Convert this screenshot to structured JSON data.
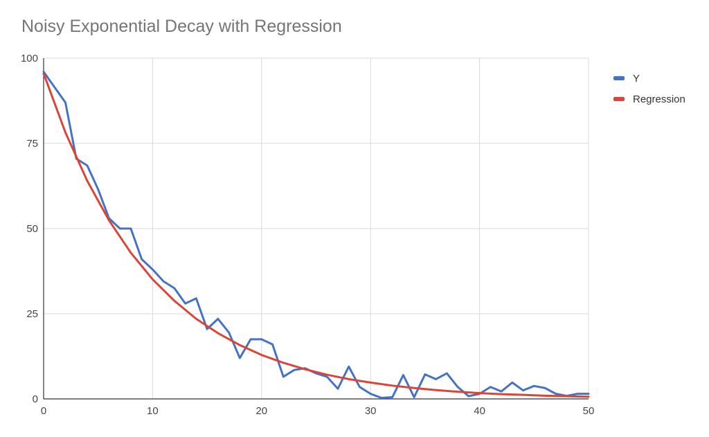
{
  "chart_data": {
    "type": "line",
    "title": "Noisy Exponential Decay with Regression",
    "xlabel": "",
    "ylabel": "",
    "xlim": [
      0,
      50
    ],
    "ylim": [
      0,
      100
    ],
    "x_ticks": [
      0,
      10,
      20,
      30,
      40,
      50
    ],
    "y_ticks": [
      0,
      25,
      50,
      75,
      100
    ],
    "grid": true,
    "legend_position": "right",
    "series": [
      {
        "name": "Y",
        "color": "#4472C4",
        "x": [
          0,
          1,
          2,
          3,
          4,
          5,
          6,
          7,
          8,
          9,
          10,
          11,
          12,
          13,
          14,
          15,
          16,
          17,
          18,
          19,
          20,
          21,
          22,
          23,
          24,
          25,
          26,
          27,
          28,
          29,
          30,
          31,
          32,
          33,
          34,
          35,
          36,
          37,
          38,
          39,
          40,
          41,
          42,
          43,
          44,
          45,
          46,
          47,
          48,
          49,
          50
        ],
        "values": [
          96,
          91.5,
          87,
          70.5,
          68.5,
          61.5,
          53,
          50,
          50,
          41,
          38,
          34.5,
          32.5,
          28,
          29.5,
          20.5,
          23.5,
          19.5,
          12,
          17.5,
          17.5,
          16,
          6.5,
          8.5,
          9,
          7.5,
          6.5,
          3,
          9.5,
          3.5,
          1.5,
          0.3,
          0.5,
          7,
          0.5,
          7.2,
          5.8,
          7.5,
          3.5,
          0.8,
          1.5,
          3.5,
          2.2,
          4.8,
          2.5,
          3.8,
          3.2,
          1.5,
          0.9,
          1.5,
          1.5
        ]
      },
      {
        "name": "Regression",
        "color": "#DB4437",
        "x": [
          0,
          2,
          4,
          6,
          8,
          10,
          12,
          14,
          16,
          18,
          20,
          22,
          24,
          26,
          28,
          30,
          32,
          34,
          36,
          38,
          40,
          42,
          44,
          46,
          48,
          50
        ],
        "values": [
          95.5,
          78.2,
          64.0,
          52.4,
          42.9,
          35.1,
          28.8,
          23.5,
          19.3,
          15.8,
          12.9,
          10.6,
          8.7,
          7.1,
          5.8,
          4.8,
          3.9,
          3.2,
          2.6,
          2.1,
          1.7,
          1.4,
          1.2,
          0.95,
          0.78,
          0.64
        ]
      }
    ]
  }
}
